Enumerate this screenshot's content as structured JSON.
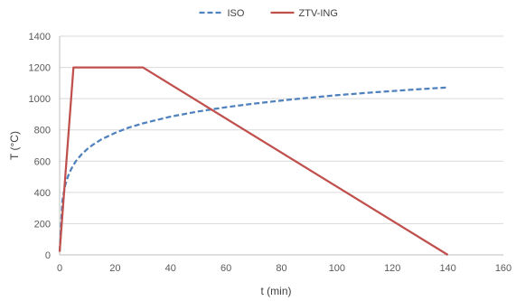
{
  "chart_data": {
    "type": "line",
    "xlabel": "t (min)",
    "ylabel": "T (°C)",
    "xlim": [
      0,
      160
    ],
    "ylim": [
      0,
      1400
    ],
    "xticks": [
      0,
      20,
      40,
      60,
      80,
      100,
      120,
      140,
      160
    ],
    "yticks": [
      0,
      200,
      400,
      600,
      800,
      1000,
      1200,
      1400
    ],
    "grid": "horizontal",
    "legend": "top-center",
    "series": [
      {
        "name": "ISO",
        "color": "#4f81bd",
        "style": "dashed",
        "x": [
          0,
          1,
          2,
          3,
          4,
          5,
          6,
          8,
          10,
          12,
          15,
          20,
          25,
          30,
          40,
          50,
          60,
          70,
          80,
          90,
          100,
          110,
          120,
          130,
          140
        ],
        "y": [
          20,
          349,
          445,
          502,
          544,
          576,
          603,
          645,
          678,
          705,
          739,
          781,
          815,
          842,
          885,
          918,
          945,
          968,
          988,
          1006,
          1022,
          1036,
          1049,
          1061,
          1072
        ]
      },
      {
        "name": "ZTV-ING",
        "color": "#c0504d",
        "style": "solid",
        "x": [
          0,
          5,
          30,
          140
        ],
        "y": [
          20,
          1200,
          1200,
          0
        ]
      }
    ]
  }
}
